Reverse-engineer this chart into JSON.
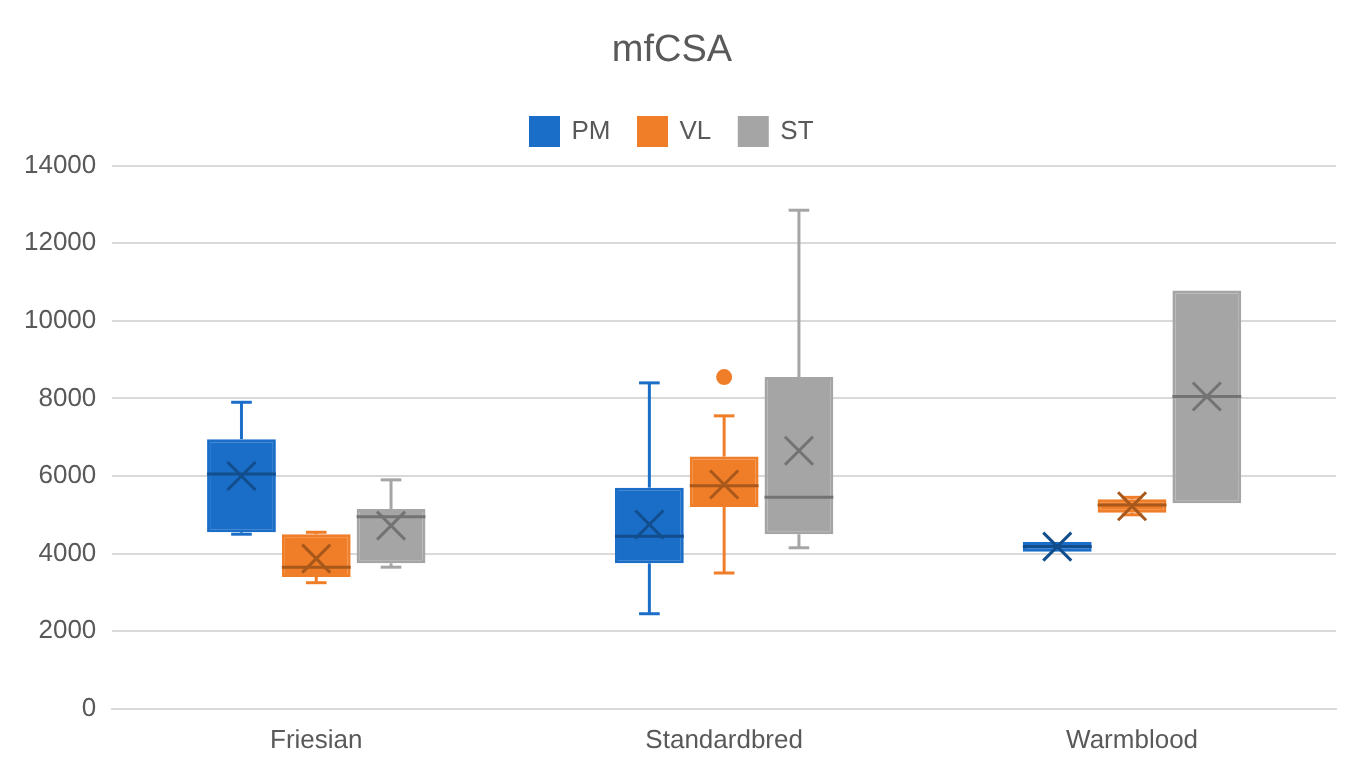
{
  "chart_data": {
    "type": "box",
    "title": "mfCSA",
    "categories": [
      "Friesian",
      "Standardbred",
      "Warmblood"
    ],
    "series": [
      {
        "name": "PM",
        "color": "#1a6ec8",
        "boxes": [
          {
            "low": 4500,
            "q1": 4550,
            "median": 6050,
            "q3": 6950,
            "high": 7900,
            "mean": 6000
          },
          {
            "low": 2450,
            "q1": 3750,
            "median": 4450,
            "q3": 5700,
            "high": 8400,
            "mean": 4750
          },
          {
            "low": 4050,
            "q1": 4050,
            "median": 4180,
            "q3": 4300,
            "high": 4300,
            "mean": 4180
          }
        ]
      },
      {
        "name": "VL",
        "color": "#f07d27",
        "boxes": [
          {
            "low": 3250,
            "q1": 3400,
            "median": 3650,
            "q3": 4500,
            "high": 4550,
            "mean": 3870
          },
          {
            "low": 3500,
            "q1": 5200,
            "median": 5750,
            "q3": 6500,
            "high": 7550,
            "mean": 5780,
            "outliers": [
              8550
            ]
          },
          {
            "low": 5000,
            "q1": 5050,
            "median": 5250,
            "q3": 5400,
            "high": 5450,
            "mean": 5220
          }
        ]
      },
      {
        "name": "ST",
        "color": "#a5a5a5",
        "boxes": [
          {
            "low": 3650,
            "q1": 3750,
            "median": 4950,
            "q3": 5150,
            "high": 5900,
            "mean": 4720
          },
          {
            "low": 4150,
            "q1": 4500,
            "median": 5450,
            "q3": 8550,
            "high": 12850,
            "mean": 6650
          },
          {
            "low": 5300,
            "q1": 5300,
            "median": 8050,
            "q3": 10780,
            "high": 10780,
            "mean": 8050
          }
        ]
      }
    ],
    "ylim": [
      0,
      14000
    ],
    "yticks": [
      0,
      2000,
      4000,
      6000,
      8000,
      10000,
      12000,
      14000
    ],
    "grid": "y",
    "legend": "top"
  }
}
